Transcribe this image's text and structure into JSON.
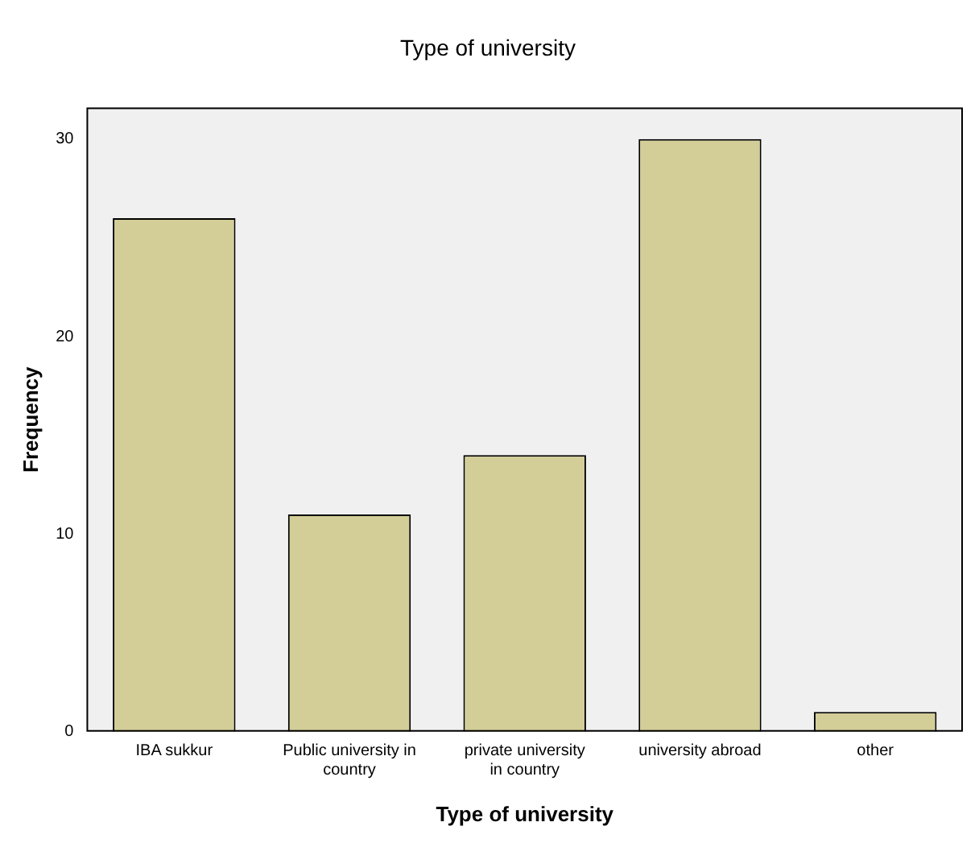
{
  "chart_data": {
    "type": "bar",
    "title": "Type of university",
    "xlabel": "Type of university",
    "ylabel": "Frequency",
    "categories": [
      "IBA sukkur",
      "Public university in country",
      "private university in country",
      "university abroad",
      "other"
    ],
    "values": [
      26,
      11,
      14,
      30,
      1
    ],
    "color": "#d3ce97",
    "ylim": [
      0,
      31.6
    ],
    "yticks": [
      0,
      10,
      20,
      30
    ],
    "grid": false,
    "legend": false
  }
}
